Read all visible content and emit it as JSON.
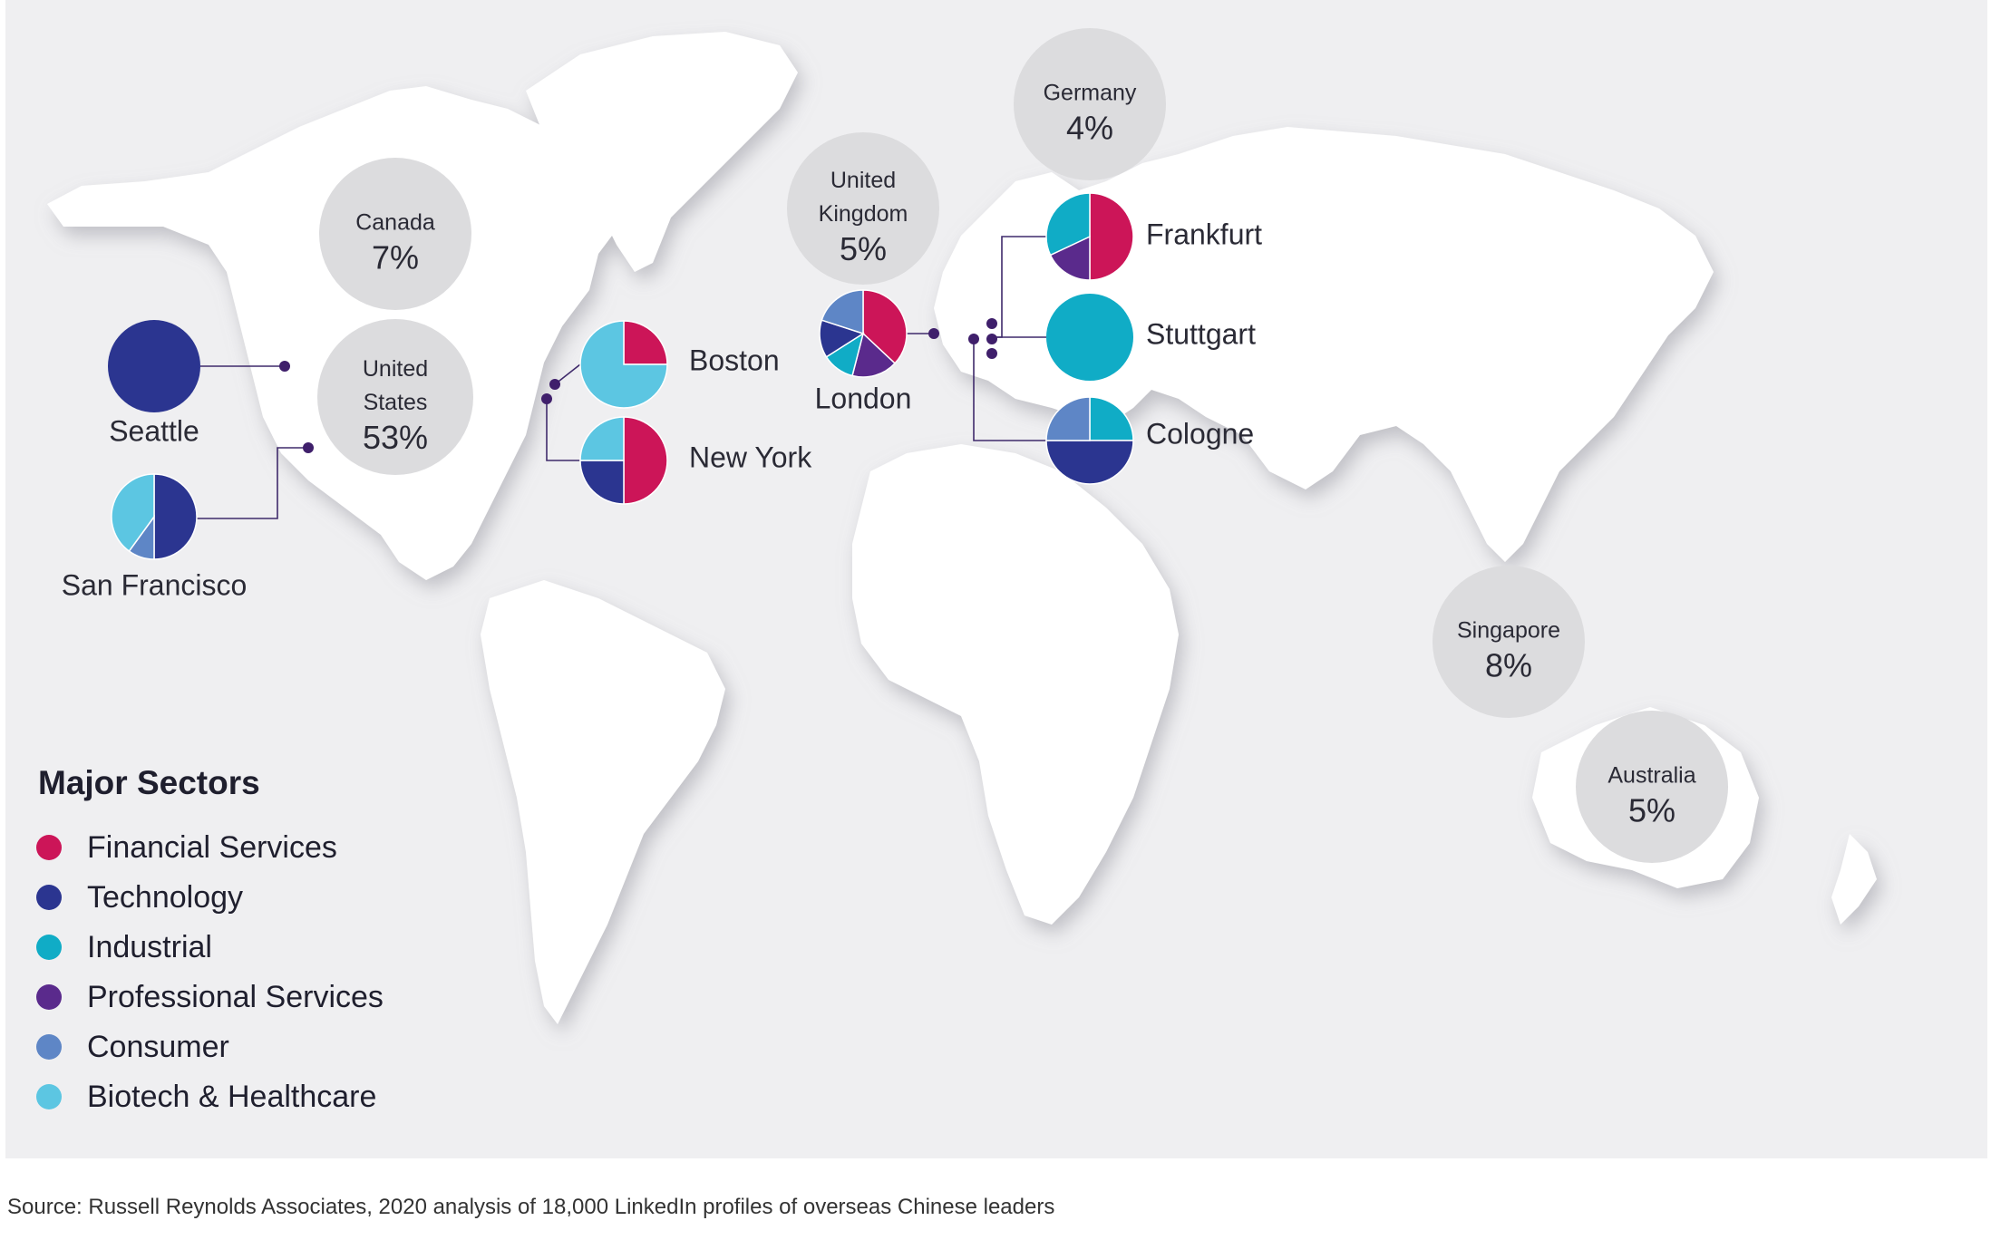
{
  "sectors": {
    "financial": {
      "label": "Financial Services",
      "color": "#cc1558"
    },
    "technology": {
      "label": "Technology",
      "color": "#2b3590"
    },
    "industrial": {
      "label": "Industrial",
      "color": "#10acc6"
    },
    "professional": {
      "label": "Professional Services",
      "color": "#5a2a8c"
    },
    "consumer": {
      "label": "Consumer",
      "color": "#5e86c6"
    },
    "biotech": {
      "label": "Biotech & Healthcare",
      "color": "#5cc6e2"
    }
  },
  "legend": {
    "title": "Major Sectors",
    "items": [
      "financial",
      "technology",
      "industrial",
      "professional",
      "consumer",
      "biotech"
    ]
  },
  "countries": [
    {
      "name_lines": [
        "Canada"
      ],
      "value": "7%"
    },
    {
      "name_lines": [
        "United",
        "States"
      ],
      "value": "53%"
    },
    {
      "name_lines": [
        "United",
        "Kingdom"
      ],
      "value": "5%"
    },
    {
      "name_lines": [
        "Germany"
      ],
      "value": "4%"
    },
    {
      "name_lines": [
        "Singapore"
      ],
      "value": "8%"
    },
    {
      "name_lines": [
        "Australia"
      ],
      "value": "5%"
    }
  ],
  "cities": [
    {
      "name": "Seattle",
      "shares": {
        "technology": 100
      }
    },
    {
      "name": "San Francisco",
      "shares": {
        "technology": 50,
        "consumer": 10,
        "biotech": 40
      }
    },
    {
      "name": "Boston",
      "shares": {
        "financial": 25,
        "biotech": 75
      }
    },
    {
      "name": "New York",
      "shares": {
        "financial": 50,
        "technology": 25,
        "biotech": 25
      }
    },
    {
      "name": "London",
      "shares": {
        "financial": 37,
        "professional": 17,
        "industrial": 12,
        "technology": 14,
        "consumer": 20
      }
    },
    {
      "name": "Frankfurt",
      "shares": {
        "financial": 50,
        "professional": 18,
        "industrial": 32
      }
    },
    {
      "name": "Stuttgart",
      "shares": {
        "industrial": 100
      }
    },
    {
      "name": "Cologne",
      "shares": {
        "technology": 50,
        "consumer": 25,
        "industrial": 25
      }
    }
  ],
  "source": "Source: Russell Reynolds Associates, 2020 analysis of 18,000 LinkedIn profiles of overseas Chinese leaders"
}
